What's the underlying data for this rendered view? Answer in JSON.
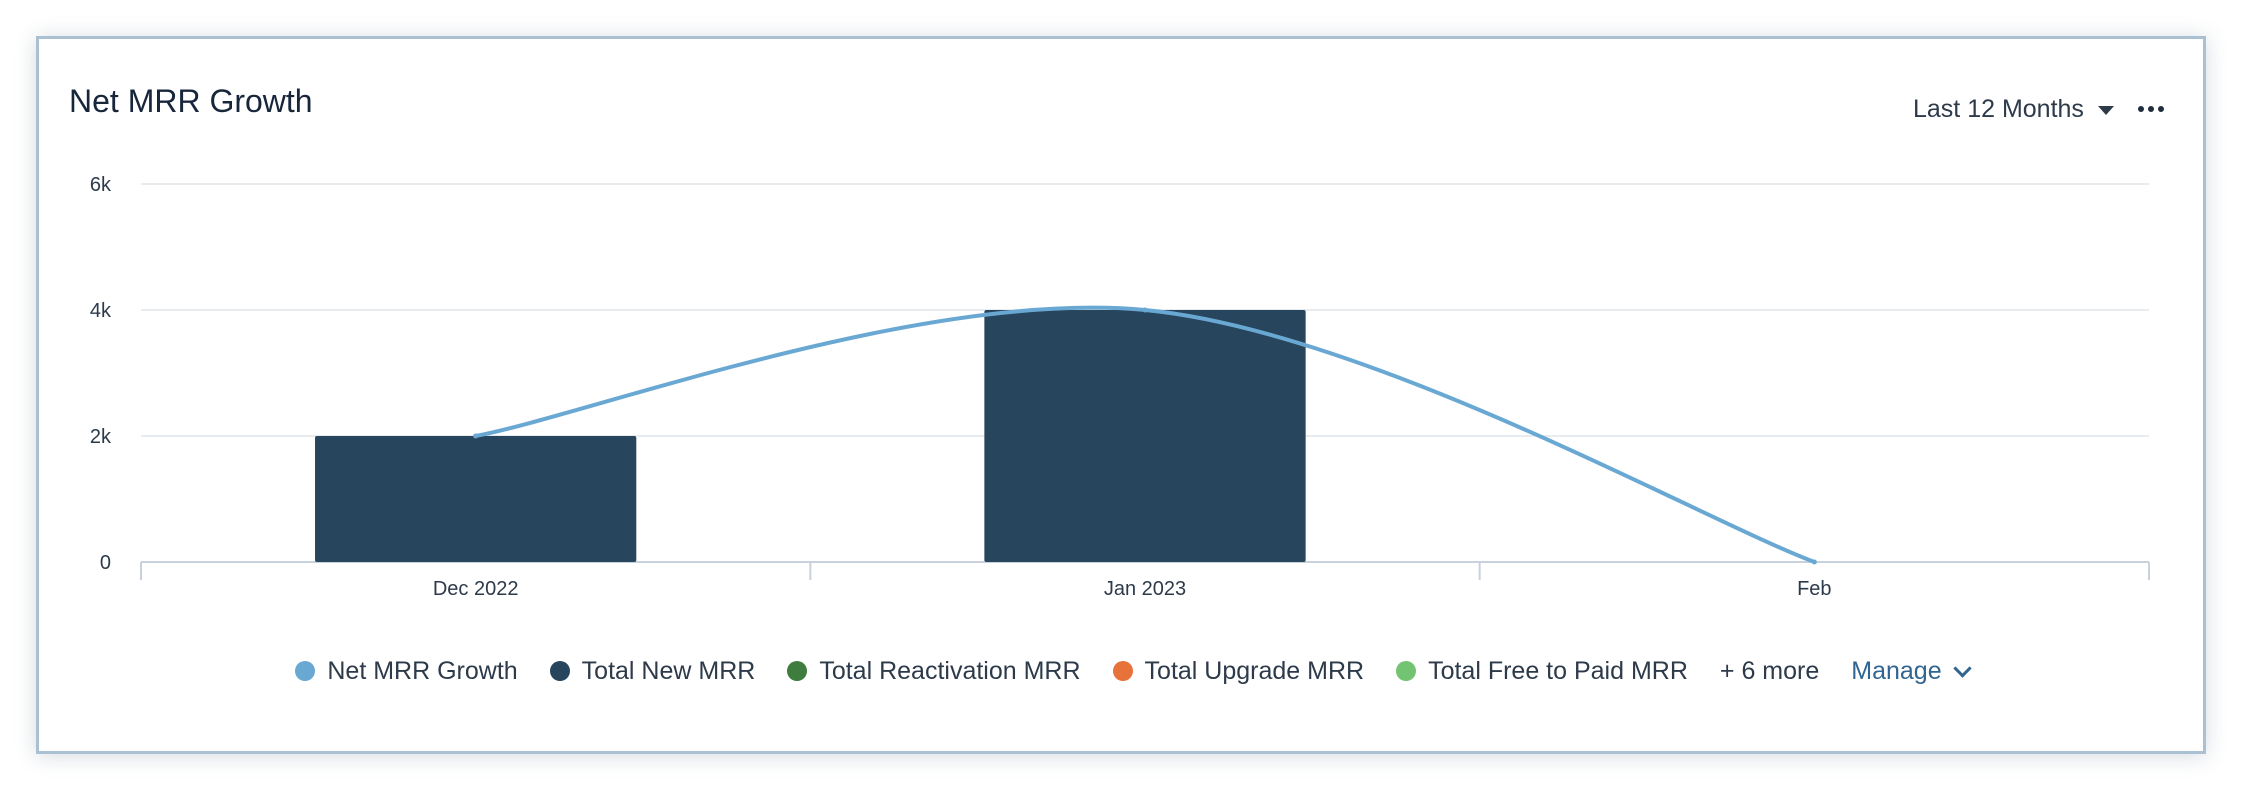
{
  "card": {
    "title": "Net MRR Growth",
    "range_label": "Last 12 Months",
    "more_icon": "more-horizontal-icon",
    "range_icon": "caret-down-icon"
  },
  "legend": {
    "items": [
      {
        "label": "Net MRR Growth",
        "color": "#6aa8d4"
      },
      {
        "label": "Total New MRR",
        "color": "#27455c"
      },
      {
        "label": "Total Reactivation MRR",
        "color": "#3e7d3e"
      },
      {
        "label": "Total Upgrade MRR",
        "color": "#e8733a"
      },
      {
        "label": "Total Free to Paid MRR",
        "color": "#72c472"
      }
    ],
    "more_label": "+ 6 more",
    "manage_label": "Manage",
    "manage_icon": "chevron-down-icon"
  },
  "chart_data": {
    "type": "bar",
    "title": "Net MRR Growth",
    "categories": [
      "Dec 2022",
      "Jan 2023",
      "Feb"
    ],
    "ylim": [
      0,
      6000
    ],
    "yticks": [
      0,
      2000,
      4000,
      6000
    ],
    "ytick_labels": [
      "0",
      "2k",
      "4k",
      "6k"
    ],
    "grid": true,
    "legend_position": "bottom",
    "series": [
      {
        "name": "Total New MRR",
        "type": "bar",
        "color": "#27455c",
        "values": [
          2000,
          4000,
          null
        ]
      },
      {
        "name": "Net MRR Growth",
        "type": "line",
        "smooth": true,
        "color": "#6aa8d4",
        "values": [
          2000,
          4000,
          0
        ]
      }
    ]
  }
}
